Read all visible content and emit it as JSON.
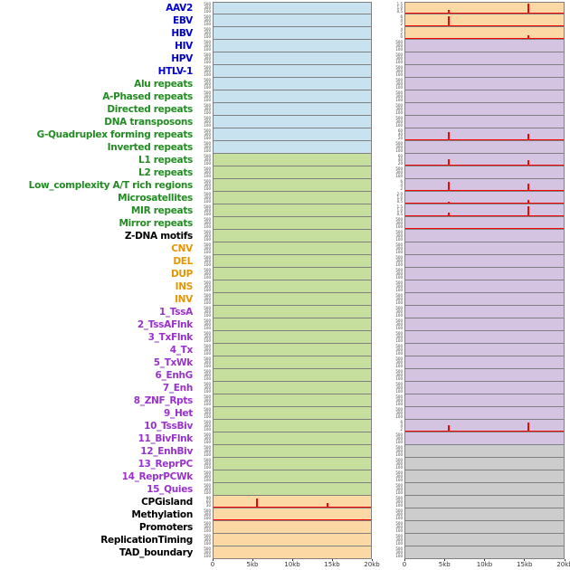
{
  "chart_data": {
    "type": "line",
    "x_axis": {
      "ticks": [
        "0",
        "5kb",
        "10kb",
        "15kb",
        "20kb"
      ],
      "range_kb": [
        0,
        20
      ]
    },
    "default_yticks": [
      "500",
      "300",
      "100"
    ],
    "colors": {
      "label": {
        "virus": "#0000cc",
        "repeat": "#228b22",
        "sv": "#e69500",
        "state": "#9932cc",
        "other": "#000000"
      },
      "panel": {
        "blue": "#c9e2f0",
        "green": "#c7df9e",
        "orange": "#fcd8a4",
        "purple": "#d4c4e2",
        "gray": "#cccccc"
      },
      "spike": "#ff0000",
      "panel_border": "#808080"
    },
    "rows": [
      {
        "label": "AAV2",
        "group": "virus",
        "left": {
          "bg": "blue"
        },
        "right": {
          "bg": "orange",
          "ticks": [
            "1.5",
            "1.0",
            "0.5"
          ],
          "spikes": [
            [
              5.5,
              0.35
            ],
            [
              15.5,
              0.92
            ]
          ],
          "baseline": true
        }
      },
      {
        "label": "EBV",
        "group": "virus",
        "left": {
          "bg": "blue"
        },
        "right": {
          "bg": "orange",
          "ticks": [
            "6",
            "4",
            "2"
          ],
          "spikes": [
            [
              5.5,
              0.95
            ]
          ],
          "baseline": true
        }
      },
      {
        "label": "HBV",
        "group": "virus",
        "left": {
          "bg": "blue"
        },
        "right": {
          "bg": "orange",
          "ticks": [
            "4",
            "2",
            "0"
          ],
          "spikes": [
            [
              15.5,
              0.35
            ]
          ],
          "baseline": true
        }
      },
      {
        "label": "HIV",
        "group": "virus",
        "left": {
          "bg": "blue"
        },
        "right": {
          "bg": "purple"
        }
      },
      {
        "label": "HPV",
        "group": "virus",
        "left": {
          "bg": "blue"
        },
        "right": {
          "bg": "purple"
        }
      },
      {
        "label": "HTLV-1",
        "group": "virus",
        "left": {
          "bg": "blue"
        },
        "right": {
          "bg": "purple"
        }
      },
      {
        "label": "Alu repeats",
        "group": "repeat",
        "left": {
          "bg": "blue"
        },
        "right": {
          "bg": "purple"
        }
      },
      {
        "label": "A-Phased repeats",
        "group": "repeat",
        "left": {
          "bg": "blue"
        },
        "right": {
          "bg": "purple"
        }
      },
      {
        "label": "Directed repeats",
        "group": "repeat",
        "left": {
          "bg": "blue"
        },
        "right": {
          "bg": "purple"
        }
      },
      {
        "label": "DNA transposons",
        "group": "repeat",
        "left": {
          "bg": "blue"
        },
        "right": {
          "bg": "purple"
        }
      },
      {
        "label": "G-Quadruplex forming repeats",
        "group": "repeat",
        "left": {
          "bg": "blue"
        },
        "right": {
          "bg": "purple",
          "ticks": [
            "60",
            "40",
            "20"
          ],
          "spikes": [
            [
              5.5,
              0.75
            ],
            [
              15.5,
              0.6
            ]
          ],
          "baseline": true
        }
      },
      {
        "label": "Inverted repeats",
        "group": "repeat",
        "left": {
          "bg": "blue"
        },
        "right": {
          "bg": "purple"
        }
      },
      {
        "label": "L1 repeats",
        "group": "repeat",
        "left": {
          "bg": "green"
        },
        "right": {
          "bg": "purple",
          "ticks": [
            "60",
            "40",
            "20"
          ],
          "spikes": [
            [
              5.5,
              0.6
            ],
            [
              15.5,
              0.5
            ]
          ],
          "baseline": true
        }
      },
      {
        "label": "L2 repeats",
        "group": "repeat",
        "left": {
          "bg": "green"
        },
        "right": {
          "bg": "purple"
        }
      },
      {
        "label": "Low_complexity A/T rich regions",
        "group": "repeat",
        "left": {
          "bg": "green"
        },
        "right": {
          "bg": "purple",
          "ticks": [
            "6",
            "4",
            "2"
          ],
          "spikes": [
            [
              5.5,
              0.8
            ],
            [
              15.5,
              0.65
            ]
          ],
          "baseline": true
        }
      },
      {
        "label": "Microsatellites",
        "group": "repeat",
        "left": {
          "bg": "green"
        },
        "right": {
          "bg": "purple",
          "ticks": [
            "2.0",
            "1.0",
            "0.5"
          ],
          "spikes": [
            [
              5.5,
              0.2
            ],
            [
              15.5,
              0.3
            ]
          ],
          "baseline": true
        }
      },
      {
        "label": "MIR repeats",
        "group": "repeat",
        "left": {
          "bg": "green"
        },
        "right": {
          "bg": "purple",
          "ticks": [
            "1.5",
            "1.0",
            "0.5"
          ],
          "spikes": [
            [
              5.5,
              0.3
            ],
            [
              15.5,
              0.88
            ]
          ],
          "baseline": true
        }
      },
      {
        "label": "Mirror repeats",
        "group": "repeat",
        "left": {
          "bg": "green"
        },
        "right": {
          "bg": "purple",
          "baseline": true
        }
      },
      {
        "label": "Z-DNA motifs",
        "group": "other",
        "left": {
          "bg": "green"
        },
        "right": {
          "bg": "purple"
        }
      },
      {
        "label": "CNV",
        "group": "sv",
        "left": {
          "bg": "green"
        },
        "right": {
          "bg": "purple"
        }
      },
      {
        "label": "DEL",
        "group": "sv",
        "left": {
          "bg": "green"
        },
        "right": {
          "bg": "purple"
        }
      },
      {
        "label": "DUP",
        "group": "sv",
        "left": {
          "bg": "green"
        },
        "right": {
          "bg": "purple"
        }
      },
      {
        "label": "INS",
        "group": "sv",
        "left": {
          "bg": "green"
        },
        "right": {
          "bg": "purple"
        }
      },
      {
        "label": "INV",
        "group": "sv",
        "left": {
          "bg": "green"
        },
        "right": {
          "bg": "purple"
        }
      },
      {
        "label": "1_TssA",
        "group": "state",
        "left": {
          "bg": "green"
        },
        "right": {
          "bg": "purple"
        }
      },
      {
        "label": "2_TssAFlnk",
        "group": "state",
        "left": {
          "bg": "green"
        },
        "right": {
          "bg": "purple"
        }
      },
      {
        "label": "3_TxFlnk",
        "group": "state",
        "left": {
          "bg": "green"
        },
        "right": {
          "bg": "purple"
        }
      },
      {
        "label": "4_Tx",
        "group": "state",
        "left": {
          "bg": "green"
        },
        "right": {
          "bg": "purple"
        }
      },
      {
        "label": "5_TxWk",
        "group": "state",
        "left": {
          "bg": "green"
        },
        "right": {
          "bg": "purple"
        }
      },
      {
        "label": "6_EnhG",
        "group": "state",
        "left": {
          "bg": "green"
        },
        "right": {
          "bg": "purple"
        }
      },
      {
        "label": "7_Enh",
        "group": "state",
        "left": {
          "bg": "green"
        },
        "right": {
          "bg": "purple"
        }
      },
      {
        "label": "8_ZNF_Rpts",
        "group": "state",
        "left": {
          "bg": "green"
        },
        "right": {
          "bg": "purple"
        }
      },
      {
        "label": "9_Het",
        "group": "state",
        "left": {
          "bg": "green"
        },
        "right": {
          "bg": "purple"
        }
      },
      {
        "label": "10_TssBiv",
        "group": "state",
        "left": {
          "bg": "green"
        },
        "right": {
          "bg": "purple",
          "ticks": [
            "6",
            "4",
            "2"
          ],
          "spikes": [
            [
              5.5,
              0.6
            ],
            [
              15.5,
              0.85
            ]
          ],
          "baseline": true
        }
      },
      {
        "label": "11_BivFlnk",
        "group": "state",
        "left": {
          "bg": "green"
        },
        "right": {
          "bg": "purple"
        }
      },
      {
        "label": "12_EnhBiv",
        "group": "state",
        "left": {
          "bg": "green"
        },
        "right": {
          "bg": "gray"
        }
      },
      {
        "label": "13_ReprPC",
        "group": "state",
        "left": {
          "bg": "green"
        },
        "right": {
          "bg": "gray"
        }
      },
      {
        "label": "14_ReprPCWk",
        "group": "state",
        "left": {
          "bg": "green"
        },
        "right": {
          "bg": "gray"
        }
      },
      {
        "label": "15_Quies",
        "group": "state",
        "left": {
          "bg": "green"
        },
        "right": {
          "bg": "gray"
        }
      },
      {
        "label": "CPGisland",
        "group": "other",
        "left": {
          "bg": "orange",
          "ticks": [
            "90",
            "60",
            "30"
          ],
          "spikes": [
            [
              5.5,
              0.85
            ],
            [
              14.5,
              0.45
            ]
          ],
          "baseline": true
        },
        "right": {
          "bg": "gray"
        }
      },
      {
        "label": "Methylation",
        "group": "other",
        "left": {
          "bg": "orange",
          "baseline": true
        },
        "right": {
          "bg": "gray"
        }
      },
      {
        "label": "Promoters",
        "group": "other",
        "left": {
          "bg": "orange"
        },
        "right": {
          "bg": "gray"
        }
      },
      {
        "label": "ReplicationTiming",
        "group": "other",
        "left": {
          "bg": "orange"
        },
        "right": {
          "bg": "gray"
        }
      },
      {
        "label": "TAD_boundary",
        "group": "other",
        "left": {
          "bg": "orange"
        },
        "right": {
          "bg": "gray"
        }
      }
    ]
  }
}
